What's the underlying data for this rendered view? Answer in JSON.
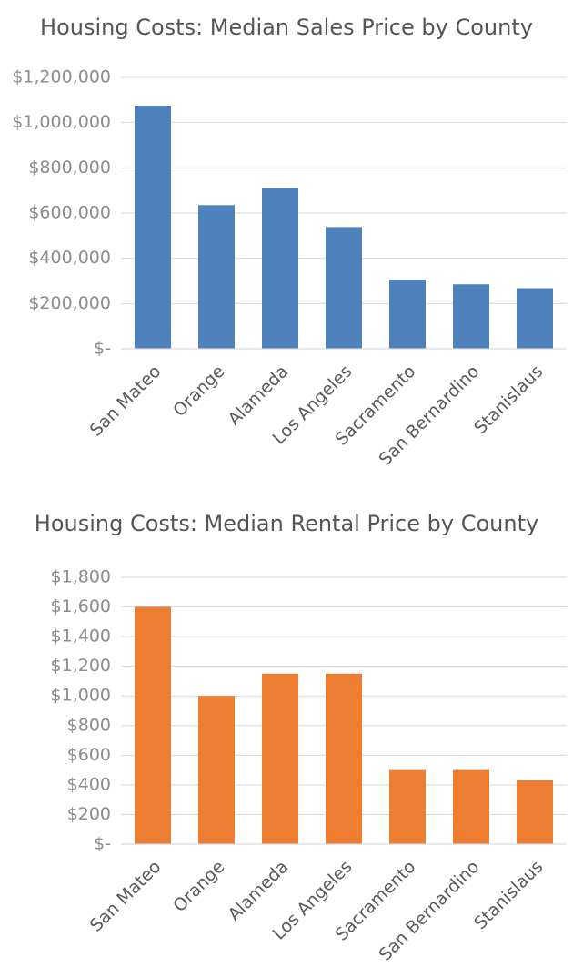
{
  "chart_data": [
    {
      "type": "bar",
      "title": "Housing Costs: Median Sales Price by County",
      "categories": [
        "San Mateo",
        "Orange",
        "Alameda",
        "Los Angeles",
        "Sacramento",
        "San Bernardino",
        "Stanislaus"
      ],
      "values": [
        1075000,
        635000,
        710000,
        538000,
        306000,
        285000,
        268000
      ],
      "ylim": [
        0,
        1200000
      ],
      "yticks": [
        0,
        200000,
        400000,
        600000,
        800000,
        1000000,
        1200000
      ],
      "ytick_labels": [
        "$-",
        "$200,000",
        "$400,000",
        "$600,000",
        "$800,000",
        "$1,000,000",
        "$1,200,000"
      ],
      "color": "#4F81BD",
      "grid": true
    },
    {
      "type": "bar",
      "title": "Housing Costs: Median Rental Price by County",
      "categories": [
        "San Mateo",
        "Orange",
        "Alameda",
        "Los Angeles",
        "Sacramento",
        "San Bernardino",
        "Stanislaus"
      ],
      "values": [
        1600,
        1000,
        1150,
        1150,
        500,
        500,
        430
      ],
      "ylim": [
        0,
        1800
      ],
      "yticks": [
        0,
        200,
        400,
        600,
        800,
        1000,
        1200,
        1400,
        1600,
        1800
      ],
      "ytick_labels": [
        "$-",
        "$200",
        "$400",
        "$600",
        "$800",
        "$1,000",
        "$1,200",
        "$1,400",
        "$1,600",
        "$1,800"
      ],
      "color": "#ED7D31",
      "grid": true
    }
  ]
}
